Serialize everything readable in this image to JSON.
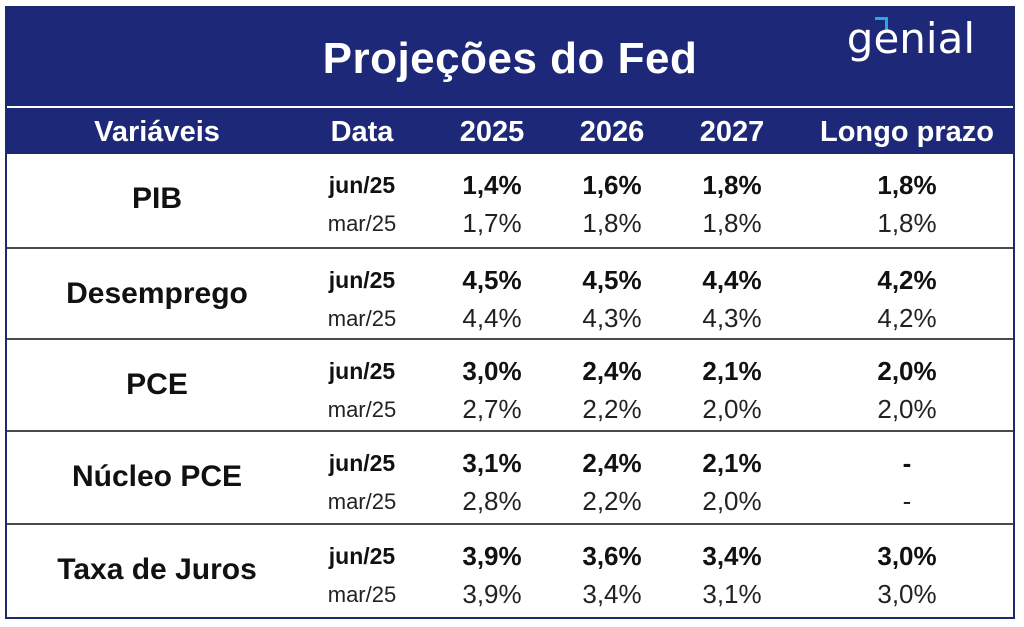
{
  "title": "Projeções do Fed",
  "logo_text": "genial",
  "headers": [
    "Variáveis",
    "Data",
    "2025",
    "2026",
    "2027",
    "Longo prazo"
  ],
  "rows": [
    {
      "variable": "PIB",
      "current": {
        "date": "jun/25",
        "values": [
          "1,4%",
          "1,6%",
          "1,8%",
          "1,8%"
        ]
      },
      "previous": {
        "date": "mar/25",
        "values": [
          "1,7%",
          "1,8%",
          "1,8%",
          "1,8%"
        ]
      }
    },
    {
      "variable": "Desemprego",
      "current": {
        "date": "jun/25",
        "values": [
          "4,5%",
          "4,5%",
          "4,4%",
          "4,2%"
        ]
      },
      "previous": {
        "date": "mar/25",
        "values": [
          "4,4%",
          "4,3%",
          "4,3%",
          "4,2%"
        ]
      }
    },
    {
      "variable": "PCE",
      "current": {
        "date": "jun/25",
        "values": [
          "3,0%",
          "2,4%",
          "2,1%",
          "2,0%"
        ]
      },
      "previous": {
        "date": "mar/25",
        "values": [
          "2,7%",
          "2,2%",
          "2,0%",
          "2,0%"
        ]
      }
    },
    {
      "variable": "Núcleo PCE",
      "current": {
        "date": "jun/25",
        "values": [
          "3,1%",
          "2,4%",
          "2,1%",
          "-"
        ]
      },
      "previous": {
        "date": "mar/25",
        "values": [
          "2,8%",
          "2,2%",
          "2,0%",
          "-"
        ]
      }
    },
    {
      "variable": "Taxa de Juros",
      "current": {
        "date": "jun/25",
        "values": [
          "3,9%",
          "3,6%",
          "3,4%",
          "3,0%"
        ]
      },
      "previous": {
        "date": "mar/25",
        "values": [
          "3,9%",
          "3,4%",
          "3,1%",
          "3,0%"
        ]
      }
    }
  ],
  "chart_data": {
    "type": "table",
    "title": "Projeções do Fed",
    "columns": [
      "Variáveis",
      "Data",
      "2025",
      "2026",
      "2027",
      "Longo prazo"
    ],
    "data": [
      [
        "PIB",
        "jun/25",
        "1,4%",
        "1,6%",
        "1,8%",
        "1,8%"
      ],
      [
        "PIB",
        "mar/25",
        "1,7%",
        "1,8%",
        "1,8%",
        "1,8%"
      ],
      [
        "Desemprego",
        "jun/25",
        "4,5%",
        "4,5%",
        "4,4%",
        "4,2%"
      ],
      [
        "Desemprego",
        "mar/25",
        "4,4%",
        "4,3%",
        "4,3%",
        "4,2%"
      ],
      [
        "PCE",
        "jun/25",
        "3,0%",
        "2,4%",
        "2,1%",
        "2,0%"
      ],
      [
        "PCE",
        "mar/25",
        "2,7%",
        "2,2%",
        "2,0%",
        "2,0%"
      ],
      [
        "Núcleo PCE",
        "jun/25",
        "3,1%",
        "2,4%",
        "2,1%",
        "-"
      ],
      [
        "Núcleo PCE",
        "mar/25",
        "2,8%",
        "2,2%",
        "2,0%",
        "-"
      ],
      [
        "Taxa de Juros",
        "jun/25",
        "3,9%",
        "3,6%",
        "3,4%",
        "3,0%"
      ],
      [
        "Taxa de Juros",
        "mar/25",
        "3,9%",
        "3,4%",
        "3,1%",
        "3,0%"
      ]
    ]
  },
  "colors": {
    "header_bg": "#1d2878",
    "header_text": "#ffffff",
    "accent": "#2aa6e0"
  }
}
